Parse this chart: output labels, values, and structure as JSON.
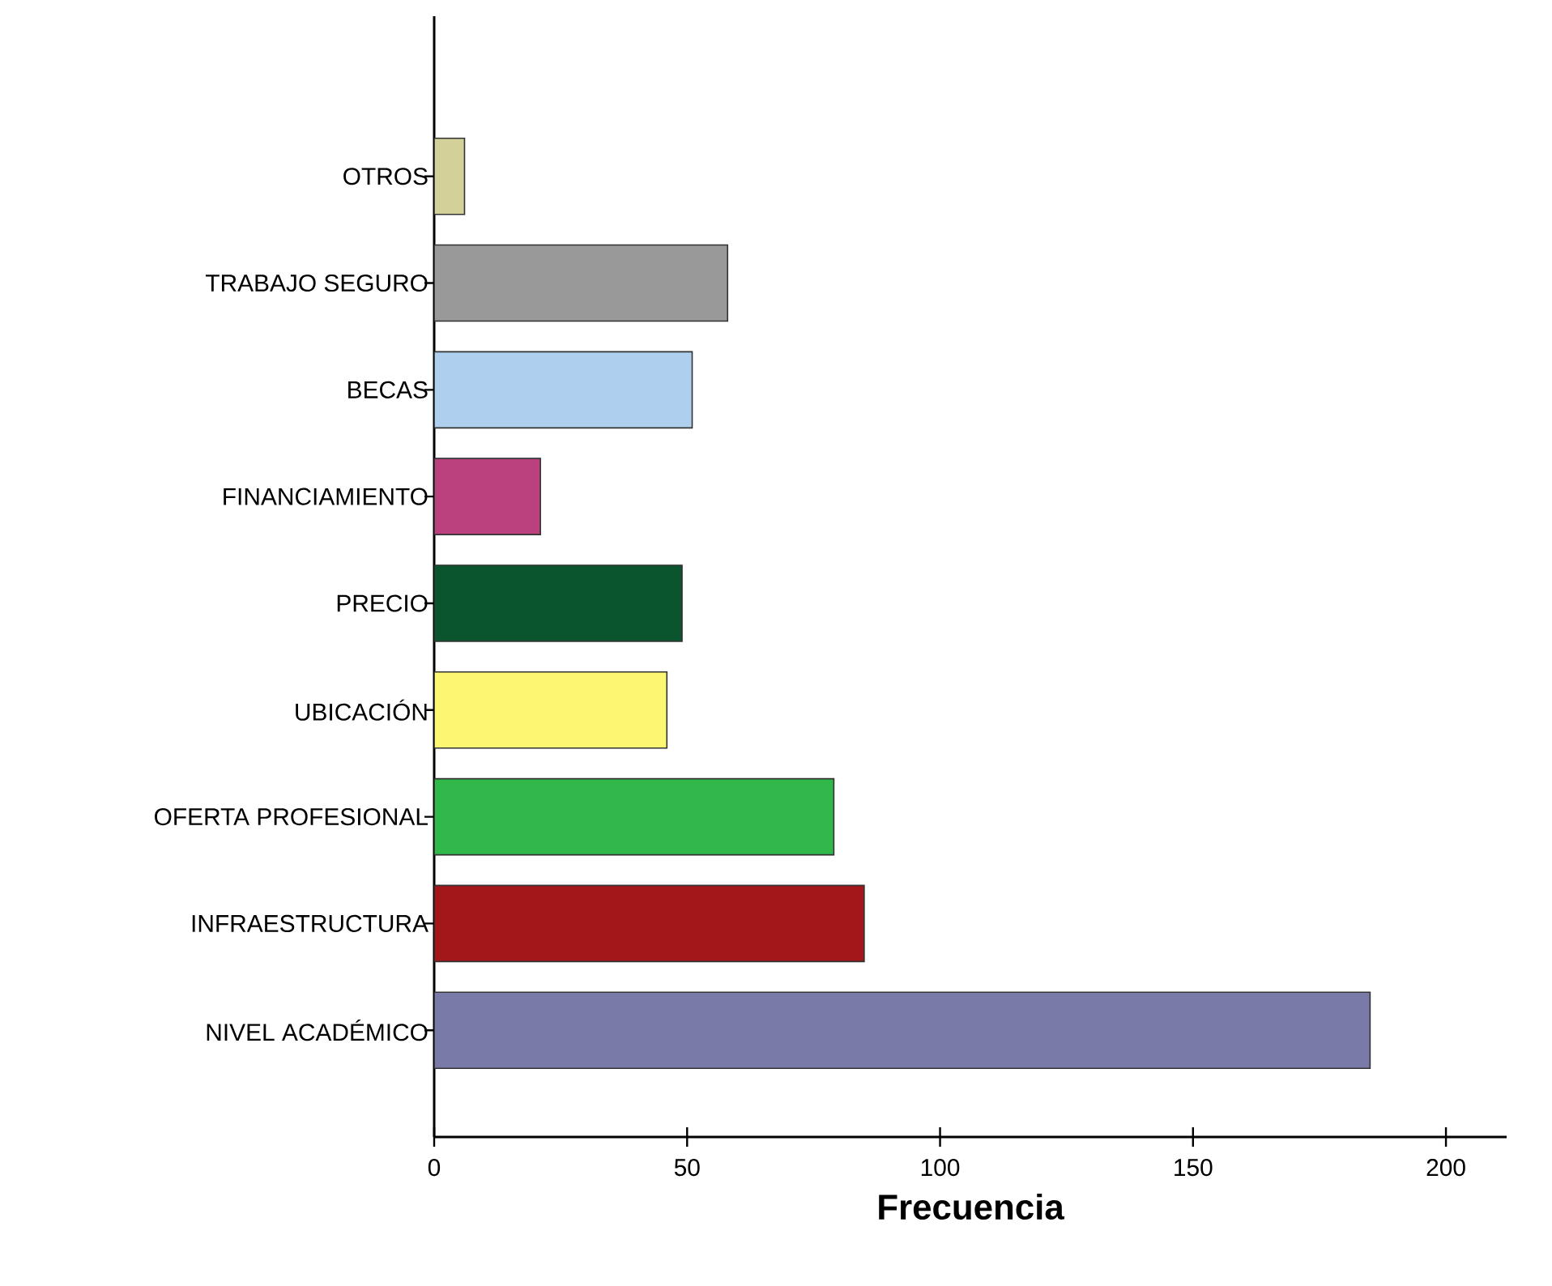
{
  "chart_data": {
    "type": "bar",
    "orientation": "horizontal",
    "xlabel": "Frecuencia",
    "categories": [
      "OTROS",
      "TRABAJO SEGURO",
      "BECAS",
      "FINANCIAMIENTO",
      "PRECIO",
      "UBICACIÓN",
      "OFERTA  PROFESIONAL",
      "INFRAESTRUCTURA",
      "NIVEL ACADÉMICO"
    ],
    "values": [
      6,
      58,
      51,
      21,
      49,
      46,
      79,
      85,
      185
    ],
    "colors": [
      "#d4d09a",
      "#999999",
      "#aed0ee",
      "#bb417e",
      "#0b552e",
      "#fbf771",
      "#31b84a",
      "#a3161a",
      "#7a7aa8"
    ],
    "xlim": [
      0,
      212
    ],
    "xticks": [
      0,
      50,
      100,
      150,
      200
    ],
    "grid": false
  }
}
